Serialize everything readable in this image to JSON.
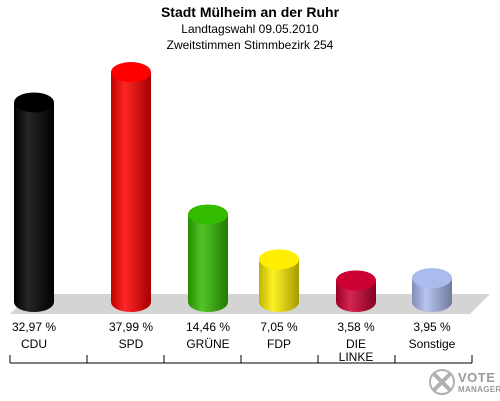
{
  "title": "Stadt Mülheim an der Ruhr",
  "subtitle1": "Landtagswahl 09.05.2010",
  "subtitle2": "Zweitstimmen Stimmbezirk 254",
  "logo": {
    "line1": "VOTE",
    "line2": "MANAGER"
  },
  "chart_data": {
    "type": "bar",
    "title": "Stadt Mülheim an der Ruhr",
    "categories": [
      "CDU",
      "SPD",
      "GRÜNE",
      "FDP",
      "DIE LINKE",
      "Sonstige"
    ],
    "values": [
      32.97,
      37.99,
      14.46,
      7.05,
      3.58,
      3.95
    ],
    "value_labels": [
      "32,97 %",
      "37,99 %",
      "14,46 %",
      "7,05 %",
      "3,58 %",
      "3,95 %"
    ],
    "colors": [
      "#000000",
      "#ff0000",
      "#33bb00",
      "#ffee00",
      "#cc0033",
      "#aabbee"
    ],
    "ylim": [
      0,
      38
    ]
  }
}
